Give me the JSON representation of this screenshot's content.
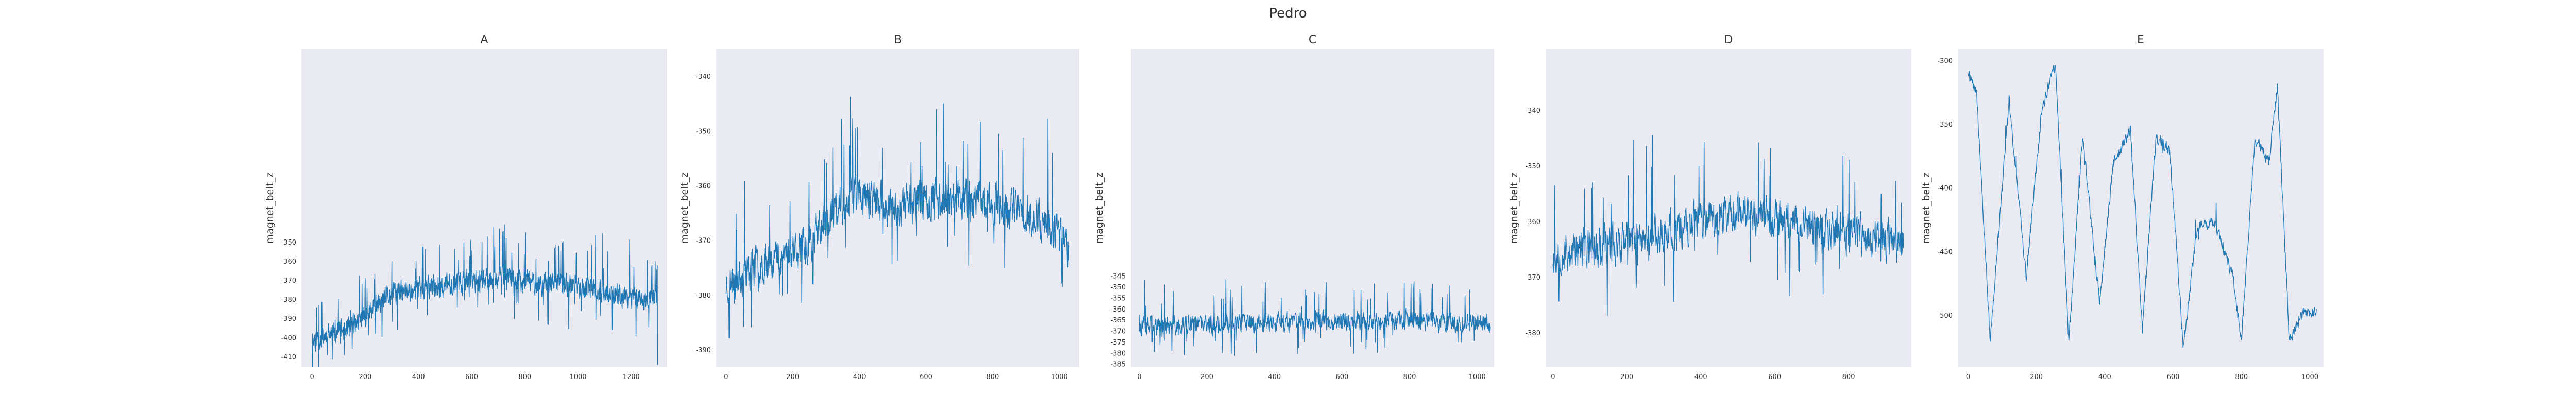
{
  "figure": {
    "title": "Pedro"
  },
  "style": {
    "line_color": "#1f77b4",
    "panel_bg": "#eaeaf2",
    "grid": false,
    "text_color": "#333333"
  },
  "chart_data": [
    {
      "type": "line",
      "title": "A",
      "xlabel": "",
      "ylabel": "magnet_belt_z",
      "xlim": [
        -40,
        1335
      ],
      "ylim": [
        -415,
        -249
      ],
      "n": 1300,
      "xticks": [
        0,
        200,
        400,
        600,
        800,
        1000,
        1200
      ],
      "yticks": [
        -410,
        -400,
        -390,
        -380,
        -370,
        -360,
        -350
      ],
      "series": [
        {
          "name": "",
          "profile": [
            [
              0,
              -401
            ],
            [
              150,
              -394
            ],
            [
              300,
              -377
            ],
            [
              500,
              -372
            ],
            [
              700,
              -368
            ],
            [
              850,
              -371
            ],
            [
              1000,
              -373
            ],
            [
              1150,
              -378
            ],
            [
              1290,
              -380
            ]
          ],
          "noise": 8,
          "spikes": 9,
          "seed": 11,
          "end_value": -414
        }
      ]
    },
    {
      "type": "line",
      "title": "B",
      "xlabel": "",
      "ylabel": "magnet_belt_z",
      "xlim": [
        -30,
        1060
      ],
      "ylim": [
        -393,
        -335
      ],
      "n": 1030,
      "xticks": [
        0,
        200,
        400,
        600,
        800,
        1000
      ],
      "yticks": [
        -390,
        -380,
        -370,
        -360,
        -350,
        -340
      ],
      "series": [
        {
          "name": "",
          "profile": [
            [
              0,
              -378
            ],
            [
              100,
              -374
            ],
            [
              250,
              -370
            ],
            [
              380,
              -361
            ],
            [
              500,
              -364
            ],
            [
              650,
              -362
            ],
            [
              800,
              -363
            ],
            [
              950,
              -366
            ],
            [
              1030,
              -371
            ]
          ],
          "noise": 5,
          "spikes": 7,
          "seed": 23
        }
      ]
    },
    {
      "type": "line",
      "title": "C",
      "xlabel": "",
      "ylabel": "magnet_belt_z",
      "xlim": [
        -25,
        1050
      ],
      "ylim": [
        -386,
        -242
      ],
      "n": 1040,
      "xticks": [
        0,
        200,
        400,
        600,
        800,
        1000
      ],
      "yticks": [
        -385,
        -380,
        -375,
        -370,
        -365,
        -360,
        -355,
        -350,
        -345
      ],
      "series": [
        {
          "name": "",
          "profile": [
            [
              0,
              -368
            ],
            [
              200,
              -367
            ],
            [
              400,
              -366
            ],
            [
              600,
              -365
            ],
            [
              800,
              -365
            ],
            [
              1000,
              -366
            ],
            [
              1040,
              -367
            ]
          ],
          "noise": 6,
          "spikes": 9,
          "seed": 37
        }
      ]
    },
    {
      "type": "line",
      "title": "D",
      "xlabel": "",
      "ylabel": "magnet_belt_z",
      "xlim": [
        -20,
        970
      ],
      "ylim": [
        -386,
        -329
      ],
      "n": 950,
      "xticks": [
        0,
        200,
        400,
        600,
        800
      ],
      "yticks": [
        -380,
        -370,
        -360,
        -350,
        -340
      ],
      "series": [
        {
          "name": "",
          "profile": [
            [
              0,
              -366
            ],
            [
              150,
              -364
            ],
            [
              300,
              -362
            ],
            [
              500,
              -358
            ],
            [
              700,
              -361
            ],
            [
              950,
              -364
            ]
          ],
          "noise": 5,
          "spikes": 7,
          "seed": 53
        }
      ]
    },
    {
      "type": "line",
      "title": "E",
      "xlabel": "",
      "ylabel": "magnet_belt_z",
      "xlim": [
        -30,
        1040
      ],
      "ylim": [
        -540,
        -291
      ],
      "n": 1020,
      "xticks": [
        0,
        200,
        400,
        600,
        800,
        1000
      ],
      "yticks": [
        -500,
        -450,
        -400,
        -350,
        -300
      ],
      "series": [
        {
          "name": "",
          "profile": [
            [
              0,
              -310
            ],
            [
              25,
              -325
            ],
            [
              65,
              -520
            ],
            [
              120,
              -330
            ],
            [
              170,
              -470
            ],
            [
              215,
              -340
            ],
            [
              255,
              -302
            ],
            [
              295,
              -520
            ],
            [
              335,
              -360
            ],
            [
              385,
              -490
            ],
            [
              425,
              -380
            ],
            [
              475,
              -355
            ],
            [
              510,
              -510
            ],
            [
              550,
              -360
            ],
            [
              590,
              -370
            ],
            [
              630,
              -525
            ],
            [
              670,
              -430
            ],
            [
              720,
              -425
            ],
            [
              775,
              -470
            ],
            [
              800,
              -520
            ],
            [
              840,
              -360
            ],
            [
              880,
              -380
            ],
            [
              905,
              -320
            ],
            [
              940,
              -520
            ],
            [
              975,
              -500
            ],
            [
              1010,
              -497
            ]
          ],
          "noise": 6,
          "spikes": 1,
          "seed": 71
        }
      ]
    }
  ]
}
